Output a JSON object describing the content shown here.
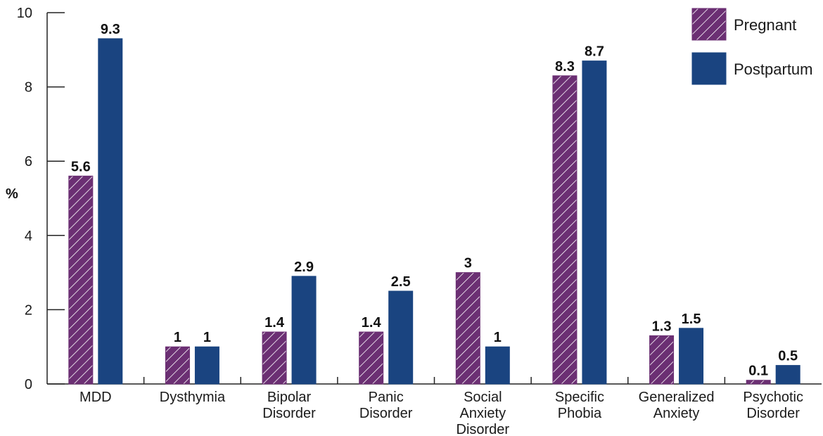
{
  "chart_data": {
    "type": "bar",
    "ylabel": "%",
    "xlabel": "",
    "ylim": [
      0,
      10
    ],
    "yticks": [
      0,
      2,
      4,
      6,
      8,
      10
    ],
    "grid": false,
    "legend_position": "top-right",
    "categories": [
      [
        "MDD"
      ],
      [
        "Dysthymia"
      ],
      [
        "Bipolar",
        "Disorder"
      ],
      [
        "Panic",
        "Disorder"
      ],
      [
        "Social",
        "Anxiety",
        "Disorder"
      ],
      [
        "Specific",
        "Phobia"
      ],
      [
        "Generalized",
        "Anxiety"
      ],
      [
        "Psychotic",
        "Disorder"
      ]
    ],
    "series": [
      {
        "name": "Pregnant",
        "color": "#6b2f73",
        "pattern": "diagonal-hatch",
        "values": [
          5.6,
          1,
          1.4,
          1.4,
          3,
          8.3,
          1.3,
          0.1
        ]
      },
      {
        "name": "Postpartum",
        "color": "#1a4480",
        "pattern": "solid",
        "values": [
          9.3,
          1,
          2.9,
          2.5,
          1,
          8.7,
          1.5,
          0.5
        ]
      }
    ]
  }
}
